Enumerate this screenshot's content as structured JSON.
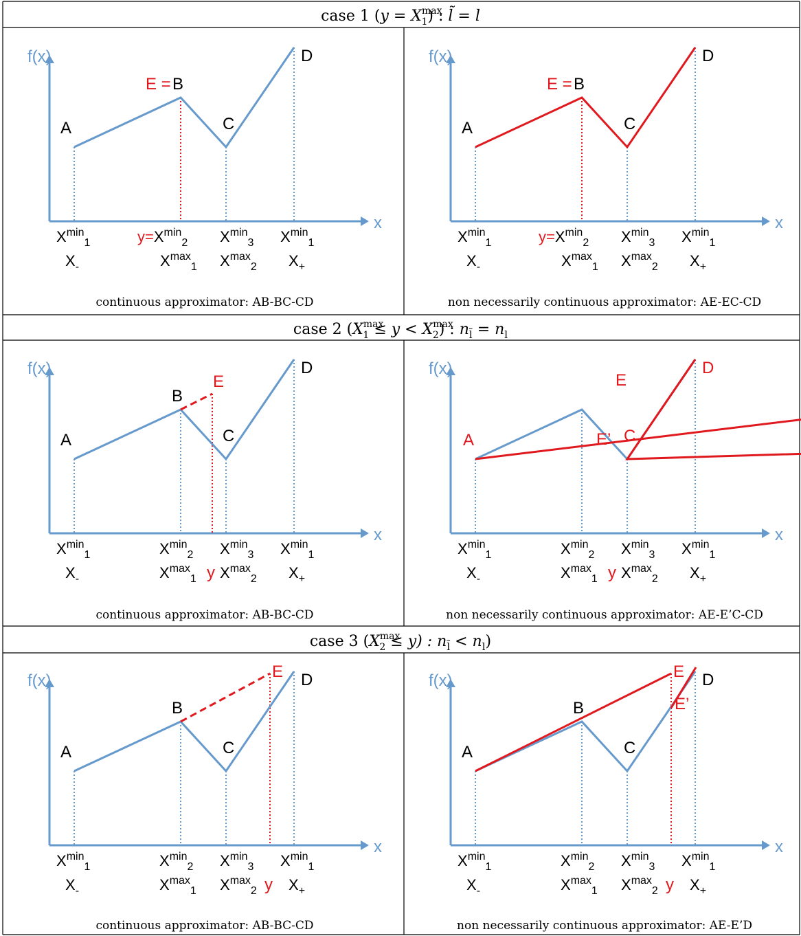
{
  "colors": {
    "blue": "#6699CC",
    "red": "#E0191E",
    "black": "#000000",
    "grid": "#000000"
  },
  "labels": {
    "fx": "f(x)",
    "x": "x",
    "A": "A",
    "B": "B",
    "C": "C",
    "D": "D",
    "E": "E",
    "E_eq": "E =",
    "Eprime": "E’",
    "X": "X",
    "min": "min",
    "max": "max",
    "sub1": "1",
    "sub2": "2",
    "sub3": "3",
    "Xminus": "X",
    "minusSub": "-",
    "Xplus": "X",
    "plusSub": "+",
    "y": "y",
    "y_eq": "y="
  },
  "cases": [
    {
      "header": {
        "pre": "case 1 (",
        "math": "y = X",
        "sub": "1",
        "sup": "max",
        "post": ") : ",
        "rhs": "l̃ = l"
      },
      "left_caption": "continuous approximator: AB-BC-CD",
      "right_caption": "non necessarily continuous approximator: AE-EC-CD"
    },
    {
      "header": {
        "pre": "case 2 (",
        "math": "X",
        "sub": "1",
        "sup": "max",
        "mid": " ≤ y < X",
        "sub2": "2",
        "sup2": "max",
        "post": ") : ",
        "rhs": "n",
        "rhs_sub": "l̃",
        "rhs2": " = n",
        "rhs2_sub": "l"
      },
      "left_caption": "continuous approximator: AB-BC-CD",
      "right_caption": "non necessarily continuous approximator: AE-E’C-CD"
    },
    {
      "header": {
        "pre": "case 3 (",
        "math": "X",
        "sub": "2",
        "sup": "max",
        "mid": " ≤ y) : ",
        "rhs": "n",
        "rhs_sub": "l̃",
        "rhs2": " < n",
        "rhs2_sub": "l",
        "post": ")"
      },
      "left_caption": "continuous approximator: AB-BC-CD",
      "right_caption": "non necessarily continuous approximator: AE-E’D"
    }
  ]
}
